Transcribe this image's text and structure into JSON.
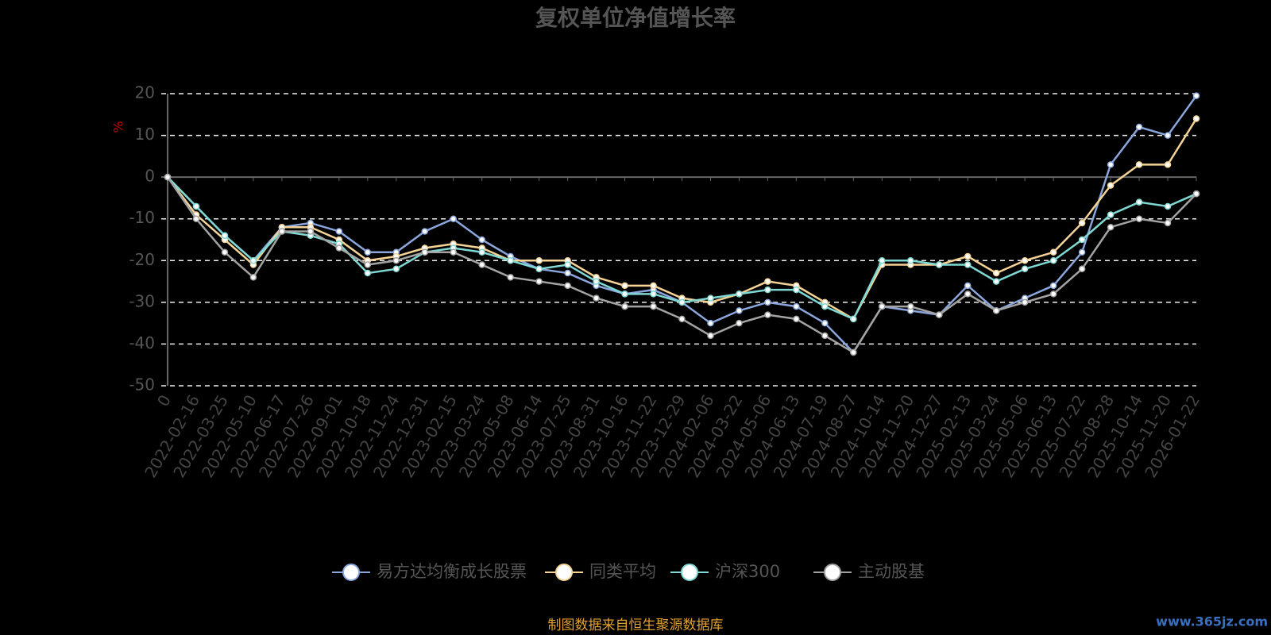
{
  "chart_data": {
    "type": "line",
    "title": "复权单位净值增长率",
    "y_label": "%",
    "source": "制图数据来自恒生聚源数据库",
    "watermark": "www.365jz.com",
    "categories": [
      "0",
      "2022-02-16",
      "2022-03-25",
      "2022-05-10",
      "2022-06-17",
      "2022-07-26",
      "2022-09-01",
      "2022-10-18",
      "2022-11-24",
      "2022-12-31",
      "2023-02-15",
      "2023-03-24",
      "2023-05-08",
      "2023-06-14",
      "2023-07-25",
      "2023-08-31",
      "2023-10-16",
      "2023-11-22",
      "2023-12-29",
      "2024-02-06",
      "2024-03-22",
      "2024-05-06",
      "2024-06-13",
      "2024-07-19",
      "2024-08-27",
      "2024-10-14",
      "2024-11-20",
      "2024-12-27",
      "2025-02-13",
      "2025-03-24",
      "2025-05-06",
      "2025-06-13",
      "2025-07-22",
      "2025-08-28",
      "2025-10-14",
      "2025-11-20",
      "2026-01-22"
    ],
    "series": [
      {
        "name": "易方达均衡成长股票",
        "color": "#8aa6dc",
        "values": [
          0,
          -7,
          -14,
          -20,
          -12,
          -11,
          -13,
          -18,
          -18,
          -13,
          -10,
          -15,
          -19,
          -22,
          -23,
          -26,
          -28,
          -27,
          -30,
          -35,
          -32,
          -30,
          -31,
          -35,
          -42,
          -31,
          -32,
          -33,
          -26,
          -32,
          -29,
          -26,
          -18,
          3,
          12,
          10,
          19.5
        ]
      },
      {
        "name": "同类平均",
        "color": "#f5d396",
        "values": [
          0,
          -9,
          -15,
          -21,
          -12,
          -12,
          -15,
          -20,
          -19,
          -17,
          -16,
          -17,
          -20,
          -20,
          -20,
          -24,
          -26,
          -26,
          -29,
          -30,
          -28,
          -25,
          -26,
          -30,
          -34,
          -21,
          -21,
          -21,
          -19,
          -23,
          -20,
          -18,
          -11,
          -2,
          3,
          3,
          14
        ]
      },
      {
        "name": "沪深300",
        "color": "#7fd8d2",
        "values": [
          0,
          -7,
          -14,
          -20,
          -13,
          -14,
          -16,
          -23,
          -22,
          -18,
          -17,
          -18,
          -20,
          -22,
          -21,
          -25,
          -28,
          -28,
          -30,
          -29,
          -28,
          -27,
          -27,
          -31,
          -34,
          -20,
          -20,
          -21,
          -21,
          -25,
          -22,
          -20,
          -15,
          -9,
          -6,
          -7,
          -4
        ]
      },
      {
        "name": "主动股基",
        "color": "#a3a3a3",
        "values": [
          0,
          -10,
          -18,
          -24,
          -13,
          -13,
          -17,
          -21,
          -20,
          -18,
          -18,
          -21,
          -24,
          -25,
          -26,
          -29,
          -31,
          -31,
          -34,
          -38,
          -35,
          -33,
          -34,
          -38,
          -42,
          -31,
          -31,
          -33,
          -28,
          -32,
          -30,
          -28,
          -22,
          -12,
          -10,
          -11,
          -4
        ]
      }
    ],
    "ylim": [
      -50,
      20
    ],
    "yticks": [
      -50,
      -40,
      -30,
      -20,
      -10,
      0,
      10,
      20
    ],
    "grid": true
  }
}
